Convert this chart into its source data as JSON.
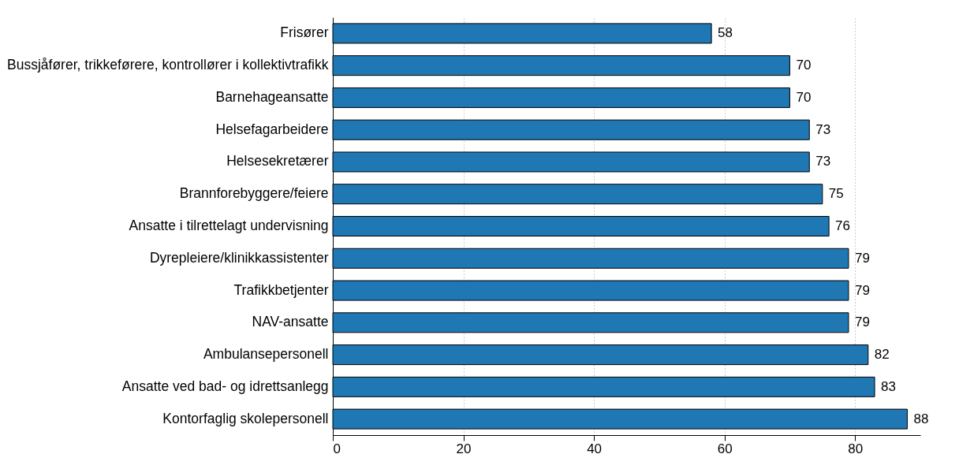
{
  "chart_data": {
    "type": "bar",
    "orientation": "horizontal",
    "categories": [
      "Frisører",
      "Bussjåfører, trikkeførere, kontrollører i kollektivtrafikk",
      "Barnehageansatte",
      "Helsefagarbeidere",
      "Helsesekretærer",
      "Brannforebyggere/feiere",
      "Ansatte i tilrettelagt undervisning",
      "Dyrepleiere/klinikkassistenter",
      "Trafikkbetjenter",
      "NAV-ansatte",
      "Ambulansepersonell",
      "Ansatte ved bad- og idrettsanlegg",
      "Kontorfaglig skolepersonell"
    ],
    "values": [
      58,
      70,
      70,
      73,
      73,
      75,
      76,
      79,
      79,
      79,
      82,
      83,
      88
    ],
    "color": "#1f77b4",
    "data_labels": true,
    "xlim": [
      0,
      90
    ],
    "xticks": [
      0,
      20,
      40,
      60,
      80
    ],
    "grid": "x"
  }
}
